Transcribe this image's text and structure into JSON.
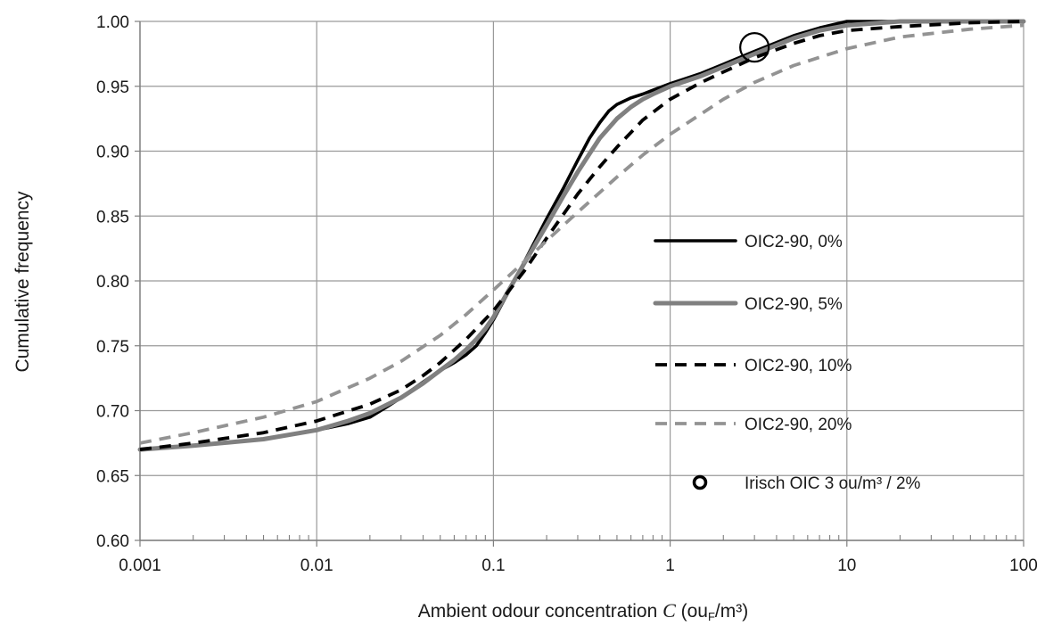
{
  "chart_data": {
    "type": "line",
    "xscale": "log",
    "xlim": [
      0.001,
      100
    ],
    "ylim": [
      0.6,
      1.0
    ],
    "grid": true,
    "legend_position": "bottom-right",
    "xlabel": {
      "prefix": "Ambient odour concentration  ",
      "variable": "C",
      "unit_open": " (ou",
      "unit_sub": "F",
      "unit_close": "/m³)"
    },
    "ylabel": "Cumulative frequency",
    "x_ticks": [
      {
        "value": 0.001,
        "label": "0.001"
      },
      {
        "value": 0.01,
        "label": "0.01"
      },
      {
        "value": 0.1,
        "label": "0.1"
      },
      {
        "value": 1,
        "label": "1"
      },
      {
        "value": 10,
        "label": "10"
      },
      {
        "value": 100,
        "label": "100"
      }
    ],
    "y_ticks": [
      {
        "value": 0.6,
        "label": "0.60"
      },
      {
        "value": 0.65,
        "label": "0.65"
      },
      {
        "value": 0.7,
        "label": "0.70"
      },
      {
        "value": 0.75,
        "label": "0.75"
      },
      {
        "value": 0.8,
        "label": "0.80"
      },
      {
        "value": 0.85,
        "label": "0.85"
      },
      {
        "value": 0.9,
        "label": "0.90"
      },
      {
        "value": 0.95,
        "label": "0.95"
      },
      {
        "value": 1.0,
        "label": "1.00"
      }
    ],
    "series": [
      {
        "name": "OIC2-90, 0%",
        "color": "#000000",
        "style": "solid",
        "x": [
          0.001,
          0.002,
          0.005,
          0.01,
          0.015,
          0.02,
          0.025,
          0.03,
          0.04,
          0.05,
          0.06,
          0.07,
          0.08,
          0.09,
          0.1,
          0.12,
          0.15,
          0.2,
          0.25,
          0.3,
          0.35,
          0.4,
          0.45,
          0.5,
          0.6,
          0.7,
          0.8,
          1,
          1.5,
          2,
          3,
          5,
          7,
          10,
          20,
          50,
          100
        ],
        "y": [
          0.67,
          0.673,
          0.678,
          0.685,
          0.69,
          0.695,
          0.703,
          0.71,
          0.722,
          0.731,
          0.737,
          0.743,
          0.75,
          0.76,
          0.77,
          0.79,
          0.815,
          0.848,
          0.872,
          0.893,
          0.91,
          0.922,
          0.931,
          0.936,
          0.941,
          0.944,
          0.947,
          0.952,
          0.96,
          0.967,
          0.977,
          0.989,
          0.995,
          1.0,
          1.0,
          1.0,
          1.0
        ]
      },
      {
        "name": "OIC2-90, 5%",
        "color": "#808080",
        "style": "solid",
        "x": [
          0.001,
          0.002,
          0.005,
          0.01,
          0.015,
          0.02,
          0.03,
          0.04,
          0.05,
          0.06,
          0.07,
          0.08,
          0.09,
          0.1,
          0.12,
          0.15,
          0.2,
          0.25,
          0.3,
          0.35,
          0.4,
          0.5,
          0.6,
          0.7,
          0.8,
          1,
          1.5,
          2,
          3,
          5,
          7,
          10,
          20,
          50,
          100
        ],
        "y": [
          0.67,
          0.673,
          0.678,
          0.685,
          0.692,
          0.698,
          0.71,
          0.721,
          0.731,
          0.739,
          0.747,
          0.755,
          0.763,
          0.772,
          0.791,
          0.814,
          0.843,
          0.866,
          0.884,
          0.898,
          0.91,
          0.925,
          0.934,
          0.94,
          0.944,
          0.95,
          0.958,
          0.965,
          0.975,
          0.987,
          0.993,
          0.997,
          1.0,
          1.0,
          1.0
        ]
      },
      {
        "name": "OIC2-90, 10%",
        "color": "#000000",
        "style": "dashed",
        "x": [
          0.001,
          0.002,
          0.005,
          0.01,
          0.02,
          0.03,
          0.04,
          0.05,
          0.07,
          0.1,
          0.15,
          0.2,
          0.3,
          0.4,
          0.5,
          0.7,
          1,
          1.5,
          2,
          3,
          5,
          7,
          10,
          20,
          50,
          100
        ],
        "y": [
          0.67,
          0.675,
          0.683,
          0.692,
          0.705,
          0.716,
          0.727,
          0.737,
          0.755,
          0.777,
          0.808,
          0.833,
          0.867,
          0.888,
          0.903,
          0.924,
          0.94,
          0.953,
          0.961,
          0.972,
          0.983,
          0.989,
          0.993,
          0.996,
          0.999,
          1.0
        ]
      },
      {
        "name": "OIC2-90, 20%",
        "color": "#939393",
        "style": "dashed",
        "x": [
          0.001,
          0.002,
          0.005,
          0.01,
          0.02,
          0.03,
          0.05,
          0.07,
          0.1,
          0.15,
          0.2,
          0.3,
          0.5,
          0.7,
          1,
          2,
          3,
          5,
          10,
          20,
          50,
          100
        ],
        "y": [
          0.675,
          0.683,
          0.695,
          0.707,
          0.725,
          0.738,
          0.758,
          0.774,
          0.793,
          0.815,
          0.831,
          0.853,
          0.88,
          0.897,
          0.913,
          0.94,
          0.953,
          0.966,
          0.979,
          0.988,
          0.994,
          0.997
        ]
      }
    ],
    "marker_series": {
      "name": "Irisch OIC  3 ou/m³  /  2%",
      "x": 3,
      "y": 0.98,
      "shape": "open-circle",
      "color": "#000000"
    }
  }
}
